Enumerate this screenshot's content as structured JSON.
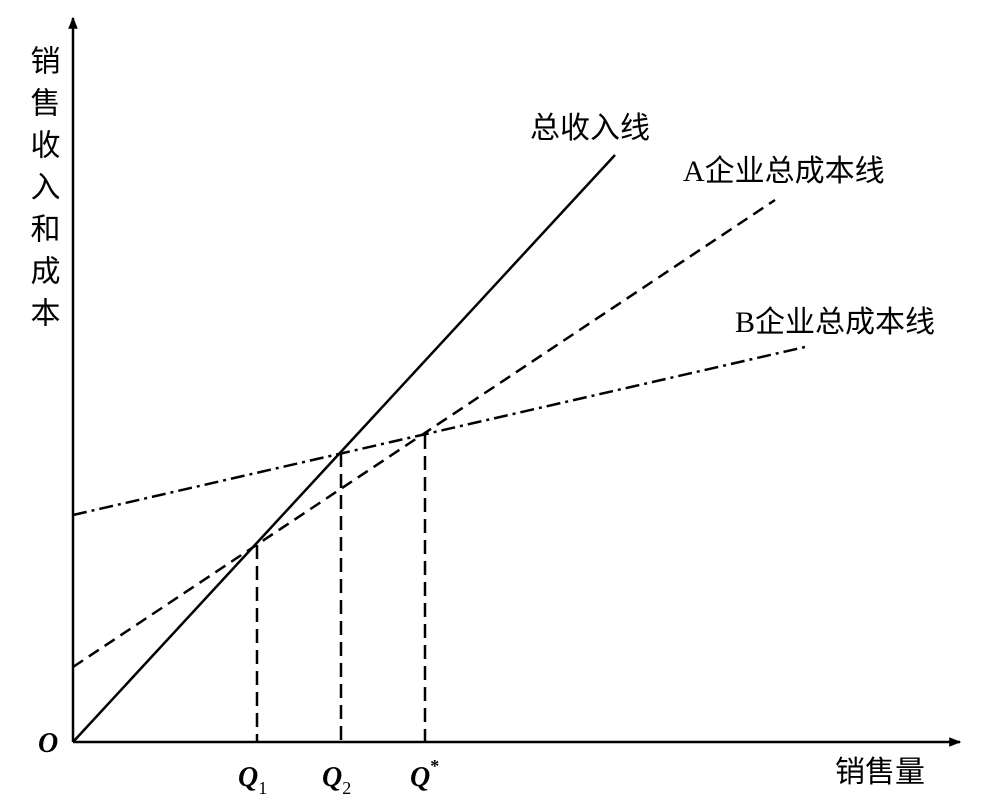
{
  "y_axis_label": "销售收入和成本",
  "x_axis_label": "销售量",
  "origin_label": "O",
  "line_labels": [
    "总收入线",
    "A企业总成本线",
    "B企业总成本线"
  ],
  "quantity_labels": [
    {
      "text": "Q",
      "subscript": "1"
    },
    {
      "text": "Q",
      "subscript": "2"
    },
    {
      "text": "Q",
      "superscript": "*"
    }
  ]
}
